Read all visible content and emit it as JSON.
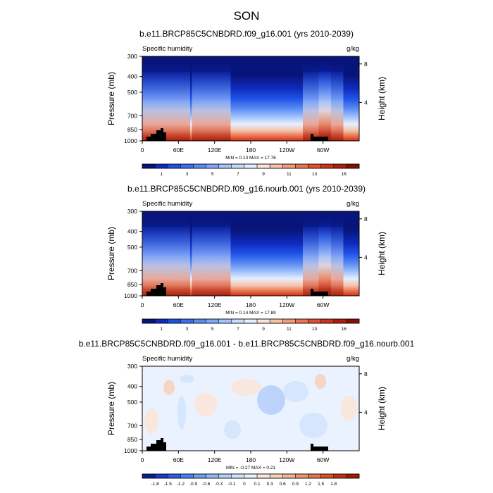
{
  "figure": {
    "title": "SON"
  },
  "colors": {
    "abs_fills": [
      "#08147a",
      "#0f2bbd",
      "#1f52e6",
      "#3c6fee",
      "#5b8cf3",
      "#7ea9f7",
      "#a4c5fb",
      "#c8dcfd",
      "#e6efff",
      "#fbe3d8",
      "#f6c2a9",
      "#f19d7c",
      "#ea7550",
      "#e2502d",
      "#d0321a",
      "#b01f0e",
      "#861005"
    ],
    "diff_fills": [
      "#0a1f8f",
      "#163cd0",
      "#2b5ee8",
      "#4a80f0",
      "#6d9df4",
      "#93b9f8",
      "#b7d0fb",
      "#d4e4fd",
      "#eaf2ff",
      "#fbe6da",
      "#f8d1bd",
      "#f3b597",
      "#ef9671",
      "#e67549",
      "#d85226",
      "#bd3211",
      "#991d06"
    ],
    "topography": "#000000"
  },
  "chart_data": [
    {
      "type": "heatmap",
      "title": "b.e11.BRCP85C5CNBDRD.f09_g16.001 (yrs 2010-2039)",
      "left_label": "Specific humidity",
      "right_label": "g/kg",
      "ylabel": "Pressure (mb)",
      "ylabel_right": "Height (km)",
      "x_ticks": [
        "0",
        "60E",
        "120E",
        "180",
        "120W",
        "60W"
      ],
      "y_ticks": [
        "300",
        "400",
        "500",
        "700",
        "850",
        "1000"
      ],
      "y_right_ticks": [
        "8",
        "4"
      ],
      "stats": "MIN =   0.13  MAX =  17.76",
      "colorbar_labels": [
        "1",
        "3",
        "5",
        "7",
        "9",
        "11",
        "13",
        "16"
      ],
      "min": 0.13,
      "max": 17.76
    },
    {
      "type": "heatmap",
      "title": "b.e11.BRCP85C5CNBDRD.f09_g16.nourb.001 (yrs 2010-2039)",
      "left_label": "Specific humidity",
      "right_label": "g/kg",
      "ylabel": "Pressure (mb)",
      "ylabel_right": "Height (km)",
      "x_ticks": [
        "0",
        "60E",
        "120E",
        "180",
        "120W",
        "60W"
      ],
      "y_ticks": [
        "300",
        "400",
        "500",
        "700",
        "850",
        "1000"
      ],
      "y_right_ticks": [
        "8",
        "4"
      ],
      "stats": "MIN =   0.14  MAX =  17.89",
      "colorbar_labels": [
        "1",
        "3",
        "5",
        "7",
        "9",
        "11",
        "13",
        "16"
      ],
      "min": 0.14,
      "max": 17.89
    },
    {
      "type": "heatmap",
      "title": "b.e11.BRCP85C5CNBDRD.f09_g16.001 - b.e11.BRCP85C5CNBDRD.f09_g16.nourb.001",
      "left_label": "Specific humidity",
      "right_label": "g/kg",
      "ylabel": "Pressure (mb)",
      "ylabel_right": "Height (km)",
      "x_ticks": [
        "0",
        "60E",
        "120E",
        "180",
        "120W",
        "60W"
      ],
      "y_ticks": [
        "300",
        "400",
        "500",
        "700",
        "850",
        "1000"
      ],
      "y_right_ticks": [
        "8",
        "4"
      ],
      "stats": "MIN =  -0.27  MAX =   0.21",
      "colorbar_labels": [
        "-1.8",
        "-1.5",
        "-1.2",
        "-0.9",
        "-0.6",
        "-0.3",
        "-0.1",
        "0",
        "0.1",
        "0.3",
        "0.6",
        "0.9",
        "1.2",
        "1.5",
        "1.8"
      ],
      "min": -0.27,
      "max": 0.21
    }
  ]
}
